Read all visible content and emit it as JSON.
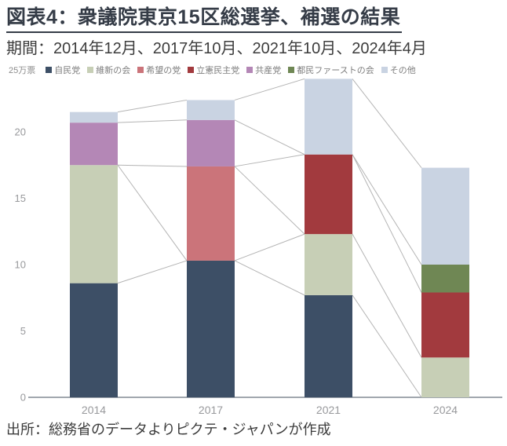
{
  "header": {
    "title": "図表4：衆議院東京15区総選挙、補選の結果",
    "subtitle": "期間：2014年12月、2017年10月、2021年10月、2024年4月"
  },
  "footer": {
    "source": "出所：総務省のデータよりピクテ・ジャパンが作成"
  },
  "chart_data": {
    "type": "bar",
    "stacked": true,
    "title": "衆議院東京15区総選挙、補選の結果",
    "unit_label": "25万票",
    "xlabel": "",
    "ylabel": "万票",
    "categories": [
      "2014",
      "2017",
      "2021",
      "2024"
    ],
    "yticks": [
      0,
      5,
      10,
      15,
      20
    ],
    "ylim": [
      0,
      25
    ],
    "grid": false,
    "legend_position": "top",
    "connector_lines": true,
    "series": [
      {
        "name": "自民党",
        "color": "#3d4f66",
        "values": [
          8.6,
          10.3,
          7.7,
          0
        ]
      },
      {
        "name": "維新の会",
        "color": "#c7cfb6",
        "values": [
          8.9,
          0,
          4.6,
          3.0
        ]
      },
      {
        "name": "希望の党",
        "color": "#cb747a",
        "values": [
          0,
          7.1,
          0,
          0
        ]
      },
      {
        "name": "立憲民主党",
        "color": "#a23a3e",
        "values": [
          0,
          0,
          6.0,
          4.9
        ]
      },
      {
        "name": "共産党",
        "color": "#b487b6",
        "values": [
          3.2,
          3.5,
          0,
          0
        ]
      },
      {
        "name": "都民ファーストの会",
        "color": "#6f8754",
        "values": [
          0,
          0,
          0,
          2.1
        ]
      },
      {
        "name": "その他",
        "color": "#c9d3e2",
        "values": [
          0.8,
          1.5,
          5.7,
          7.3
        ]
      }
    ],
    "colors": {
      "axis_line": "#a2a8af",
      "tick_label": "#98999c",
      "connector": "#b4b4b4"
    }
  }
}
